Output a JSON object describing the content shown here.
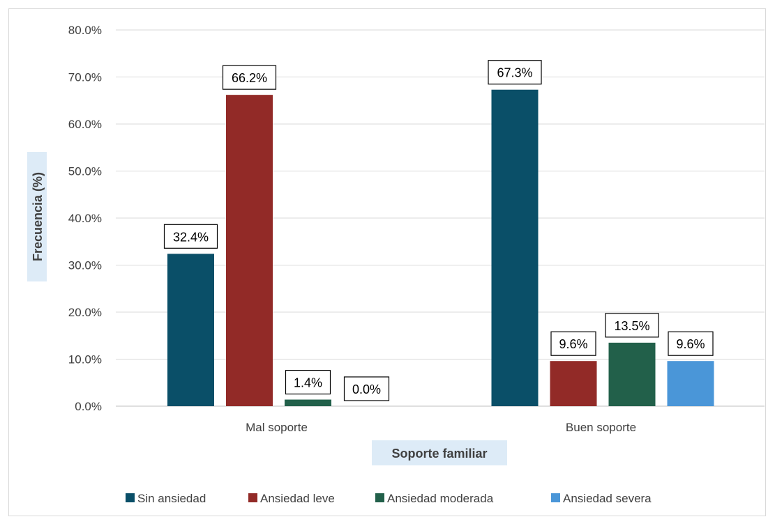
{
  "chart_data": {
    "type": "bar",
    "title": "",
    "xlabel": "Soporte familiar",
    "ylabel": "Frecuencia (%)",
    "categories": [
      "Mal soporte",
      "Buen soporte"
    ],
    "series": [
      {
        "name": "Sin ansiedad",
        "color": "#0a4f68",
        "values": [
          32.4,
          67.3
        ],
        "labels": [
          "32.4%",
          "67.3%"
        ]
      },
      {
        "name": "Ansiedad leve",
        "color": "#922a27",
        "values": [
          66.2,
          9.6
        ],
        "labels": [
          "66.2%",
          "9.6%"
        ]
      },
      {
        "name": "Ansiedad moderada",
        "color": "#22604a",
        "values": [
          1.4,
          13.5
        ],
        "labels": [
          "1.4%",
          "13.5%"
        ]
      },
      {
        "name": "Ansiedad severa",
        "color": "#4a96d8",
        "values": [
          0.0,
          9.6
        ],
        "labels": [
          "0.0%",
          "9.6%"
        ]
      }
    ],
    "ylim": [
      0,
      80
    ],
    "yticks": [
      0,
      10,
      20,
      30,
      40,
      50,
      60,
      70,
      80
    ],
    "ytick_labels": [
      "0.0%",
      "10.0%",
      "20.0%",
      "30.0%",
      "40.0%",
      "50.0%",
      "60.0%",
      "70.0%",
      "80.0%"
    ],
    "grid": true,
    "legend_position": "bottom",
    "axis_title_background": "#ddebf7"
  }
}
